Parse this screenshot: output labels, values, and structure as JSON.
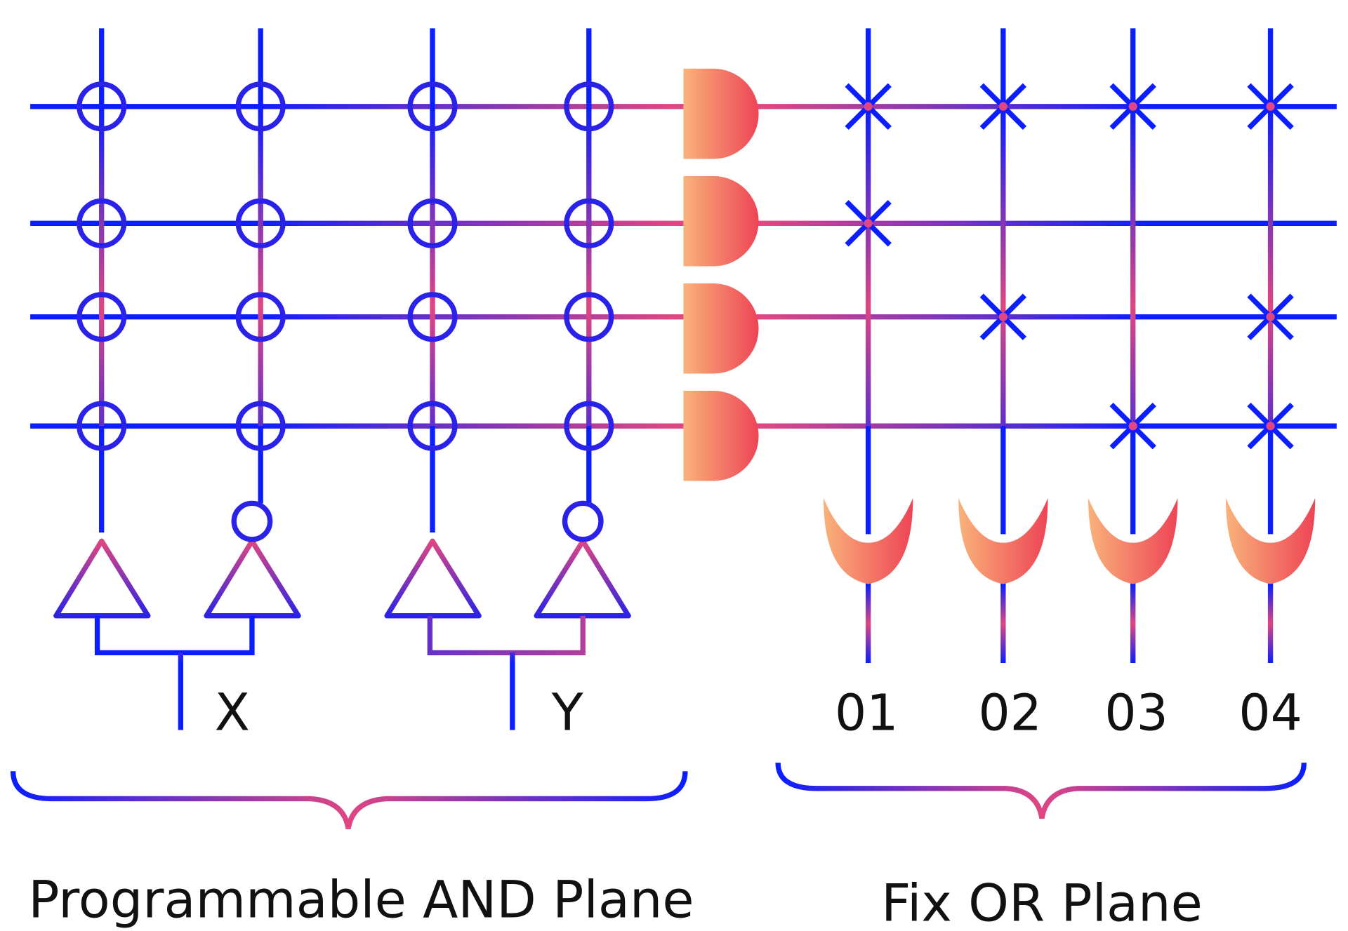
{
  "inputs": {
    "x_label": "X",
    "y_label": "Y"
  },
  "outputs": [
    "01",
    "02",
    "03",
    "04"
  ],
  "planes": {
    "and_plane_label": "Programmable AND Plane",
    "or_plane_label": "Fix OR Plane"
  },
  "and_plane": {
    "rows": 4,
    "columns": [
      "X",
      "X-inverted",
      "Y",
      "Y-inverted"
    ],
    "connection_marker": "circle"
  },
  "or_plane": {
    "connection_marker": "x-mark",
    "connections": [
      [
        true,
        true,
        true,
        true
      ],
      [
        true,
        false,
        false,
        false
      ],
      [
        false,
        true,
        false,
        true
      ],
      [
        false,
        false,
        true,
        true
      ]
    ]
  },
  "colors": {
    "wire_blue": "#0a1eff",
    "wire_pink": "#df4682",
    "gate_start": "#f9b27a",
    "gate_end": "#ee4456",
    "marker": "#2a22e8",
    "text": "#111111"
  }
}
